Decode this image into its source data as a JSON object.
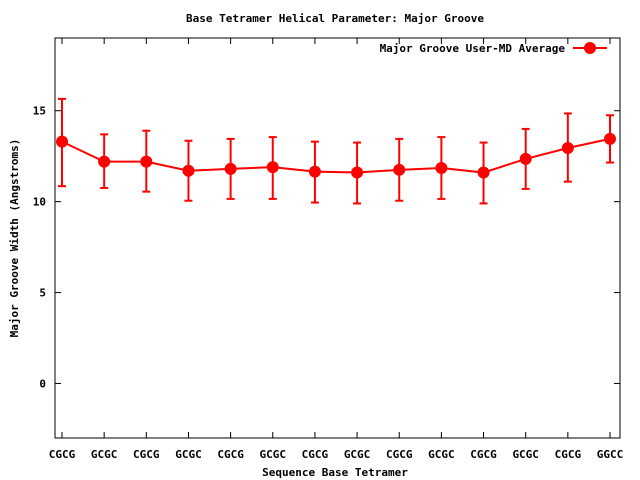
{
  "chart_data": {
    "type": "line",
    "title": "Base Tetramer Helical Parameter: Major Groove",
    "xlabel": "Sequence Base Tetramer",
    "ylabel": "Major Groove Width (Angstroms)",
    "categories": [
      "CGCG",
      "GCGC",
      "CGCG",
      "GCGC",
      "CGCG",
      "GCGC",
      "CGCG",
      "GCGC",
      "CGCG",
      "GCGC",
      "CGCG",
      "GCGC",
      "CGCG",
      "GGCC"
    ],
    "ylim": [
      -3,
      19
    ],
    "yticks": [
      0,
      5,
      10,
      15
    ],
    "grid": false,
    "legend_position": "top-right",
    "series": [
      {
        "name": "Major Groove User-MD Average",
        "color": "#ff0000",
        "values": [
          13.3,
          12.2,
          12.2,
          11.7,
          11.8,
          11.9,
          11.65,
          11.6,
          11.75,
          11.85,
          11.6,
          12.35,
          12.95,
          13.45
        ],
        "error_low": [
          10.85,
          10.75,
          10.55,
          10.05,
          10.15,
          10.15,
          9.95,
          9.9,
          10.05,
          10.15,
          9.9,
          10.7,
          11.1,
          12.15
        ],
        "error_high": [
          15.65,
          13.7,
          13.9,
          13.35,
          13.45,
          13.55,
          13.3,
          13.25,
          13.45,
          13.55,
          13.25,
          14.0,
          14.85,
          14.75
        ]
      }
    ]
  }
}
